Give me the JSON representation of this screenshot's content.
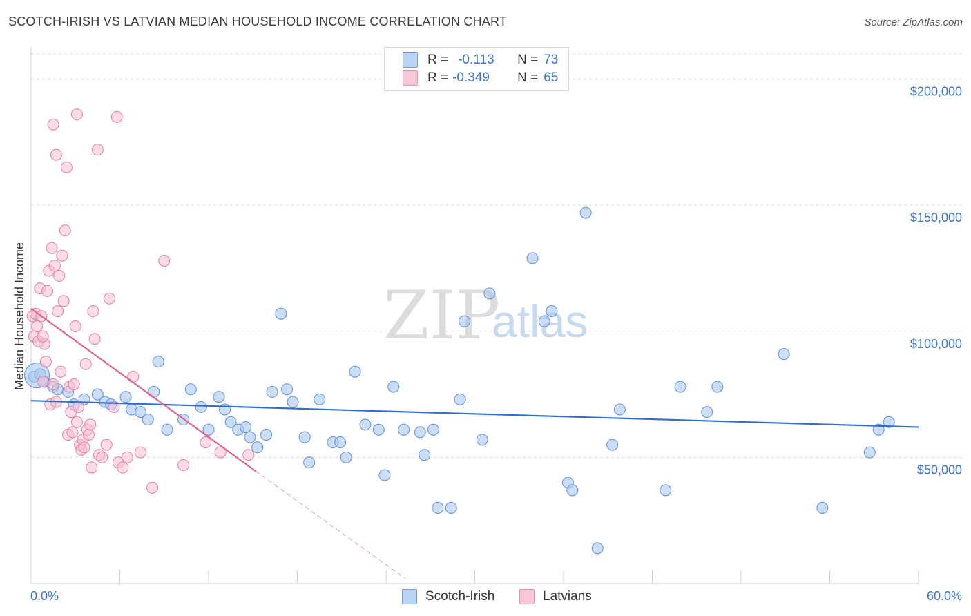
{
  "header": {
    "title": "SCOTCH-IRISH VS LATVIAN MEDIAN HOUSEHOLD INCOME CORRELATION CHART",
    "source": "Source: ZipAtlas.com"
  },
  "legend": {
    "rows": [
      {
        "r_label": "R =",
        "r_value": "-0.113",
        "n_label": "N =",
        "n_value": "73"
      },
      {
        "r_label": "R =",
        "r_value": "-0.349",
        "n_label": "N =",
        "n_value": "65"
      }
    ]
  },
  "bottom_legend": [
    "Scotch-Irish",
    "Latvians"
  ],
  "watermark": {
    "zip": "ZIP",
    "atlas": "atlas"
  },
  "colors": {
    "blue_fill": "#a9c8f0",
    "blue_stroke": "#5b8fd6",
    "blue_line": "#2f6fcf",
    "pink_fill": "#f7bfd1",
    "pink_stroke": "#e07fa0",
    "pink_line": "#e0638e",
    "label_blue": "#3a73c9",
    "grid": "#dddddd"
  },
  "chart_data": {
    "type": "scatter",
    "title": "SCOTCH-IRISH VS LATVIAN MEDIAN HOUSEHOLD INCOME CORRELATION CHART",
    "xlabel": "",
    "ylabel": "Median Household Income",
    "xlim": [
      0,
      60
    ],
    "ylim": [
      0,
      210000
    ],
    "x_tick_labels": [
      "0.0%",
      "60.0%"
    ],
    "y_ticks": [
      50000,
      100000,
      150000,
      200000
    ],
    "y_tick_labels": [
      "$50,000",
      "$100,000",
      "$150,000",
      "$200,000"
    ],
    "grid": true,
    "legend_position": "top-center",
    "series": [
      {
        "name": "Scotch-Irish",
        "r": -0.113,
        "n": 73,
        "trend": {
          "x": [
            0,
            60
          ],
          "y": [
            72500,
            62000
          ]
        },
        "points": [
          [
            0.2,
            82000
          ],
          [
            0.6,
            83000
          ],
          [
            0.9,
            80000
          ],
          [
            1.5,
            78000
          ],
          [
            1.8,
            77000
          ],
          [
            2.5,
            76000
          ],
          [
            2.9,
            71000
          ],
          [
            3.6,
            73000
          ],
          [
            4.5,
            75000
          ],
          [
            5.0,
            72000
          ],
          [
            5.4,
            71000
          ],
          [
            6.4,
            74000
          ],
          [
            6.8,
            69000
          ],
          [
            7.4,
            68000
          ],
          [
            7.9,
            65000
          ],
          [
            8.3,
            76000
          ],
          [
            8.6,
            88000
          ],
          [
            9.2,
            61000
          ],
          [
            10.3,
            65000
          ],
          [
            10.8,
            77000
          ],
          [
            11.5,
            70000
          ],
          [
            12.0,
            61000
          ],
          [
            12.7,
            74000
          ],
          [
            13.1,
            69000
          ],
          [
            13.5,
            64000
          ],
          [
            14.0,
            61000
          ],
          [
            14.5,
            62000
          ],
          [
            14.8,
            58000
          ],
          [
            15.3,
            54000
          ],
          [
            15.9,
            59000
          ],
          [
            16.3,
            76000
          ],
          [
            16.9,
            107000
          ],
          [
            17.3,
            77000
          ],
          [
            17.7,
            72000
          ],
          [
            18.5,
            58000
          ],
          [
            18.8,
            48000
          ],
          [
            19.5,
            73000
          ],
          [
            20.4,
            56000
          ],
          [
            20.9,
            56000
          ],
          [
            21.3,
            50000
          ],
          [
            21.9,
            84000
          ],
          [
            22.6,
            63000
          ],
          [
            23.5,
            61000
          ],
          [
            23.9,
            43000
          ],
          [
            24.5,
            78000
          ],
          [
            25.2,
            61000
          ],
          [
            26.3,
            60000
          ],
          [
            26.6,
            51000
          ],
          [
            27.2,
            61000
          ],
          [
            27.5,
            30000
          ],
          [
            28.4,
            30000
          ],
          [
            29.0,
            73000
          ],
          [
            29.3,
            104000
          ],
          [
            30.5,
            57000
          ],
          [
            31.0,
            115000
          ],
          [
            33.9,
            129000
          ],
          [
            34.7,
            104000
          ],
          [
            35.2,
            108000
          ],
          [
            36.3,
            40000
          ],
          [
            36.6,
            37000
          ],
          [
            37.5,
            147000
          ],
          [
            38.3,
            14000
          ],
          [
            39.3,
            55000
          ],
          [
            39.8,
            69000
          ],
          [
            42.9,
            37000
          ],
          [
            43.9,
            78000
          ],
          [
            45.7,
            68000
          ],
          [
            46.4,
            78000
          ],
          [
            50.9,
            91000
          ],
          [
            53.5,
            30000
          ],
          [
            56.7,
            52000
          ],
          [
            57.3,
            61000
          ],
          [
            58.0,
            64000
          ]
        ]
      },
      {
        "name": "Latvians",
        "r": -0.349,
        "n": 65,
        "trend": {
          "x": [
            0,
            15.2
          ],
          "y": [
            109000,
            44500
          ]
        },
        "trend_extension": {
          "x": [
            15.2,
            25.3
          ],
          "y": [
            44500,
            2000
          ]
        },
        "points": [
          [
            0.1,
            106000
          ],
          [
            0.2,
            98000
          ],
          [
            0.3,
            107000
          ],
          [
            0.4,
            102000
          ],
          [
            0.5,
            96000
          ],
          [
            0.6,
            117000
          ],
          [
            0.7,
            106000
          ],
          [
            0.8,
            80000
          ],
          [
            0.9,
            95000
          ],
          [
            1.0,
            88000
          ],
          [
            1.1,
            116000
          ],
          [
            1.2,
            124000
          ],
          [
            1.3,
            71000
          ],
          [
            1.4,
            133000
          ],
          [
            1.5,
            79000
          ],
          [
            1.6,
            126000
          ],
          [
            1.7,
            72000
          ],
          [
            1.8,
            108000
          ],
          [
            1.9,
            122000
          ],
          [
            2.0,
            84000
          ],
          [
            2.1,
            130000
          ],
          [
            2.2,
            112000
          ],
          [
            2.3,
            140000
          ],
          [
            2.4,
            165000
          ],
          [
            2.5,
            59000
          ],
          [
            2.6,
            78000
          ],
          [
            2.7,
            68000
          ],
          [
            2.8,
            60000
          ],
          [
            2.9,
            79000
          ],
          [
            3.0,
            102000
          ],
          [
            3.1,
            64000
          ],
          [
            3.2,
            70000
          ],
          [
            3.3,
            55000
          ],
          [
            3.4,
            53000
          ],
          [
            3.5,
            57000
          ],
          [
            3.6,
            54000
          ],
          [
            3.7,
            87000
          ],
          [
            3.8,
            61000
          ],
          [
            3.9,
            59000
          ],
          [
            4.0,
            63000
          ],
          [
            4.1,
            46000
          ],
          [
            4.2,
            108000
          ],
          [
            4.3,
            97000
          ],
          [
            4.5,
            172000
          ],
          [
            4.6,
            51000
          ],
          [
            4.8,
            50000
          ],
          [
            5.1,
            55000
          ],
          [
            5.3,
            113000
          ],
          [
            5.6,
            70000
          ],
          [
            5.9,
            48000
          ],
          [
            6.2,
            46000
          ],
          [
            6.5,
            50000
          ],
          [
            6.9,
            82000
          ],
          [
            7.4,
            52000
          ],
          [
            8.2,
            38000
          ],
          [
            9.0,
            128000
          ],
          [
            10.3,
            47000
          ],
          [
            11.8,
            56000
          ],
          [
            12.8,
            52000
          ],
          [
            14.7,
            51000
          ],
          [
            1.5,
            182000
          ],
          [
            3.1,
            186000
          ],
          [
            5.8,
            185000
          ],
          [
            1.7,
            170000
          ],
          [
            0.8,
            98000
          ]
        ]
      }
    ]
  }
}
